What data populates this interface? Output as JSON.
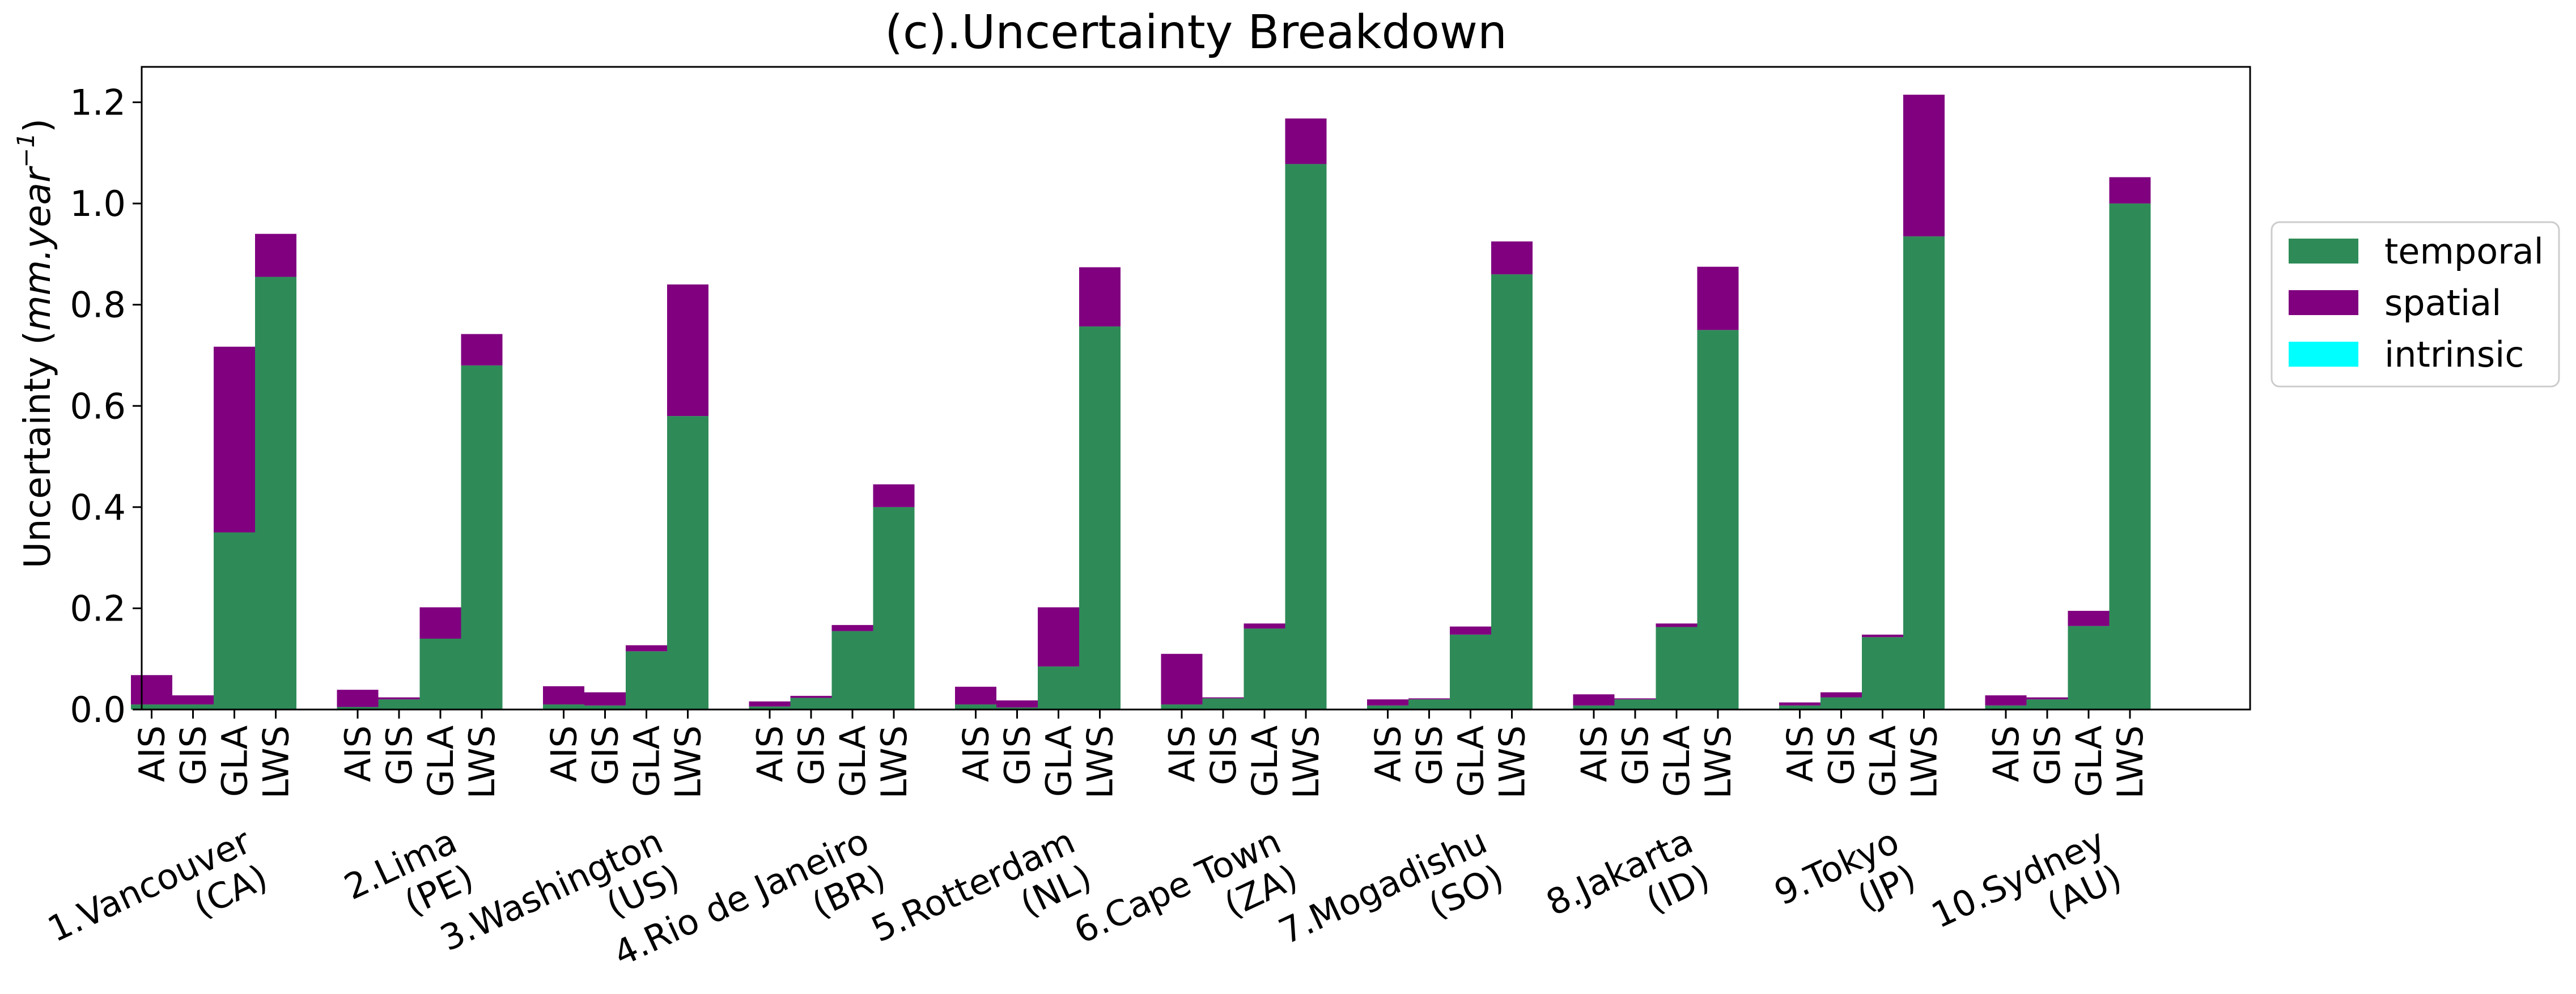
{
  "chart_data": {
    "type": "bar",
    "stacked": true,
    "title": "(c).Uncertainty Breakdown",
    "ylabel": "Uncertainty (mm.year⁻¹)",
    "ylabel_parts": {
      "prefix": "Uncertainty (",
      "unit": "mm.year",
      "exp": "−1",
      "suffix": ")"
    },
    "ylim": [
      0,
      1.27
    ],
    "yticks": [
      0.0,
      0.2,
      0.4,
      0.6,
      0.8,
      1.0,
      1.2
    ],
    "ytick_labels": [
      "0.0",
      "0.2",
      "0.4",
      "0.6",
      "0.8",
      "1.0",
      "1.2"
    ],
    "grid": false,
    "legend_position": "right",
    "subcategories": [
      "AIS",
      "GIS",
      "GLA",
      "LWS"
    ],
    "groups": [
      {
        "label": [
          "1.Vancouver",
          "(CA)"
        ],
        "temporal": [
          0.01,
          0.01,
          0.35,
          0.855
        ],
        "spatial": [
          0.058,
          0.018,
          0.367,
          0.085
        ],
        "intrinsic": [
          0,
          0,
          0,
          0
        ]
      },
      {
        "label": [
          "2.Lima",
          "(PE)"
        ],
        "temporal": [
          0.005,
          0.02,
          0.14,
          0.68
        ],
        "spatial": [
          0.034,
          0.004,
          0.062,
          0.062
        ],
        "intrinsic": [
          0,
          0,
          0,
          0
        ]
      },
      {
        "label": [
          "3.Washington",
          "(US)"
        ],
        "temporal": [
          0.01,
          0.008,
          0.115,
          0.58
        ],
        "spatial": [
          0.036,
          0.026,
          0.012,
          0.26
        ],
        "intrinsic": [
          0,
          0,
          0,
          0
        ]
      },
      {
        "label": [
          "4.Rio de Janeiro",
          "(BR)"
        ],
        "temporal": [
          0.006,
          0.023,
          0.155,
          0.4
        ],
        "spatial": [
          0.01,
          0.004,
          0.012,
          0.045
        ],
        "intrinsic": [
          0,
          0,
          0,
          0
        ]
      },
      {
        "label": [
          "5.Rotterdam",
          "(NL)"
        ],
        "temporal": [
          0.01,
          0.004,
          0.085,
          0.757
        ],
        "spatial": [
          0.035,
          0.014,
          0.117,
          0.117
        ],
        "intrinsic": [
          0,
          0,
          0,
          0
        ]
      },
      {
        "label": [
          "6.Cape Town",
          "(ZA)"
        ],
        "temporal": [
          0.01,
          0.022,
          0.16,
          1.078
        ],
        "spatial": [
          0.1,
          0.002,
          0.01,
          0.09
        ],
        "intrinsic": [
          0,
          0,
          0,
          0
        ]
      },
      {
        "label": [
          "7.Mogadishu",
          "(SO)"
        ],
        "temporal": [
          0.008,
          0.02,
          0.148,
          0.86
        ],
        "spatial": [
          0.012,
          0.002,
          0.016,
          0.065
        ],
        "intrinsic": [
          0,
          0,
          0,
          0
        ]
      },
      {
        "label": [
          "8.Jakarta",
          "(ID)"
        ],
        "temporal": [
          0.008,
          0.02,
          0.163,
          0.75
        ],
        "spatial": [
          0.022,
          0.002,
          0.007,
          0.125
        ],
        "intrinsic": [
          0,
          0,
          0,
          0
        ]
      },
      {
        "label": [
          "9.Tokyo",
          "(JP)"
        ],
        "temporal": [
          0.008,
          0.024,
          0.143,
          0.935
        ],
        "spatial": [
          0.006,
          0.01,
          0.005,
          0.28
        ],
        "intrinsic": [
          0,
          0,
          0,
          0
        ]
      },
      {
        "label": [
          "10.Sydney",
          "(AU)"
        ],
        "temporal": [
          0.008,
          0.02,
          0.165,
          1.0
        ],
        "spatial": [
          0.02,
          0.004,
          0.03,
          0.052
        ],
        "intrinsic": [
          0,
          0,
          0,
          0
        ]
      }
    ],
    "series": [
      {
        "key": "temporal",
        "name": "temporal",
        "color": "#2e8b57"
      },
      {
        "key": "spatial",
        "name": "spatial",
        "color": "#800080"
      },
      {
        "key": "intrinsic",
        "name": "intrinsic",
        "color": "#00ffff"
      }
    ]
  }
}
